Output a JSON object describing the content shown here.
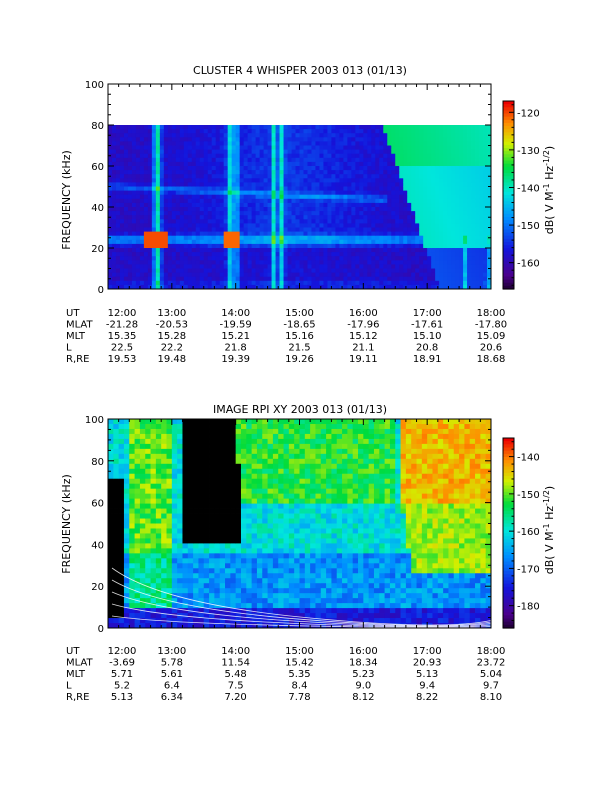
{
  "chart_data": [
    {
      "type": "heatmap",
      "title": "CLUSTER 4 WHISPER 2003 013 (01/13)",
      "ylabel": "FREQUENCY (kHz)",
      "ylim": [
        0,
        100
      ],
      "y_ticks": [
        "0",
        "20",
        "40",
        "60",
        "80",
        "100"
      ],
      "data_top_khz": 80,
      "xlim_hours": [
        12,
        18
      ],
      "colorbar": {
        "label": "dB( V M-1 Hz-1/2)",
        "label_main": "dB( V M",
        "label_sup1": "-1",
        "label_mid": " Hz",
        "label_sup2": "-1/2",
        "label_end": ")",
        "range": [
          -167,
          -117
        ],
        "ticks": [
          "-120",
          "-130",
          "-140",
          "-150",
          "-160"
        ]
      },
      "ephemeris": {
        "rows": [
          "UT",
          "MLAT",
          "MLT",
          "L",
          "R,RE"
        ],
        "ut": [
          "12:00",
          "13:00",
          "14:00",
          "15:00",
          "16:00",
          "17:00",
          "18:00"
        ],
        "mlat": [
          "-21.28",
          "-20.53",
          "-19.59",
          "-18.65",
          "-17.96",
          "-17.61",
          "-17.80"
        ],
        "mlt": [
          "15.35",
          "15.28",
          "15.21",
          "15.16",
          "15.12",
          "15.10",
          "15.09"
        ],
        "l": [
          "22.5",
          "22.2",
          "21.8",
          "21.5",
          "21.1",
          "20.8",
          "20.6"
        ],
        "r": [
          "19.53",
          "19.48",
          "19.39",
          "19.26",
          "19.11",
          "18.91",
          "18.68"
        ]
      },
      "features": {
        "background_db": -158,
        "plasma_line_khz": 24,
        "plasma_line_db": -148,
        "band_50khz_db": -150,
        "band_dates": [
          12.0,
          16.4
        ],
        "bursts_hours": [
          12.75,
          12.8,
          13.9,
          14.0,
          14.6,
          14.72,
          17.6,
          17.95
        ],
        "emission_start_hour": 16.3,
        "emission_peak_db": -130
      }
    },
    {
      "type": "heatmap",
      "title": "IMAGE RPI XY 2003 013 (01/13)",
      "ylabel": "FREQUENCY (kHz)",
      "ylim": [
        0,
        100
      ],
      "y_ticks": [
        "0",
        "20",
        "40",
        "60",
        "80",
        "100"
      ],
      "xlim_hours": [
        12,
        18
      ],
      "colorbar": {
        "label": "dB( V M-1 Hz-1/2)",
        "label_main": "dB( V M",
        "label_sup1": "-1",
        "label_mid": " Hz",
        "label_sup2": "-1/2",
        "label_end": ")",
        "range": [
          -186,
          -135
        ],
        "ticks": [
          "-140",
          "-150",
          "-160",
          "-170",
          "-180"
        ]
      },
      "ephemeris": {
        "rows": [
          "UT",
          "MLAT",
          "MLT",
          "L",
          "R,RE"
        ],
        "ut": [
          "12:00",
          "13:00",
          "14:00",
          "15:00",
          "16:00",
          "17:00",
          "18:00"
        ],
        "mlat": [
          "-3.69",
          "5.78",
          "11.54",
          "15.42",
          "18.34",
          "20.93",
          "23.72"
        ],
        "mlt": [
          "5.71",
          "5.61",
          "5.48",
          "5.35",
          "5.23",
          "5.13",
          "5.04"
        ],
        "l": [
          "5.2",
          "6.4",
          "7.5",
          "8.4",
          "9.0",
          "9.4",
          "9.7"
        ],
        "r": [
          "5.13",
          "6.34",
          "7.20",
          "7.78",
          "8.12",
          "8.22",
          "8.10"
        ]
      },
      "features": {
        "black_region_hours": [
          13.2,
          14.0
        ],
        "cold_background_db": -160,
        "warm_region_start_hour": 16.6,
        "warm_region_peak_db": -145,
        "low_band_khz": [
          0,
          10
        ]
      }
    }
  ]
}
